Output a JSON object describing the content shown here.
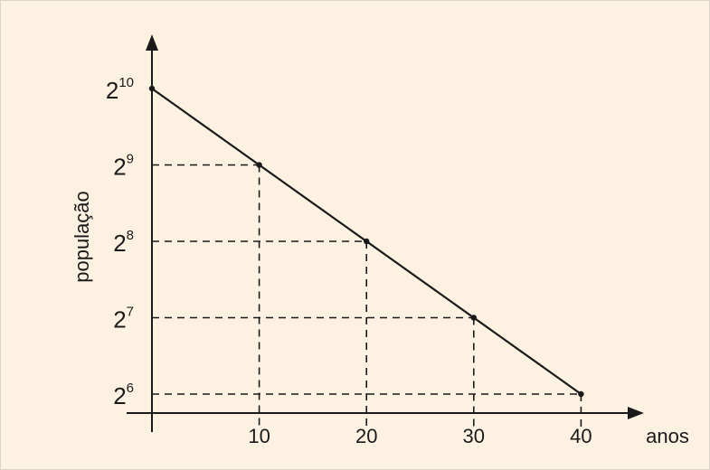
{
  "colors": {
    "background": "#fdf2e2",
    "border": "#d9d4cc",
    "ink": "#1a1a1a"
  },
  "chart_data": {
    "type": "line",
    "xlabel": "anos",
    "ylabel": "população",
    "xlim": [
      0,
      42
    ],
    "ylim": [
      52,
      1100
    ],
    "x_ticks": [
      {
        "value": 10,
        "label": "10"
      },
      {
        "value": 20,
        "label": "20"
      },
      {
        "value": 30,
        "label": "30"
      },
      {
        "value": 40,
        "label": "40"
      }
    ],
    "y_ticks": [
      {
        "value": 64,
        "base": "2",
        "exp": "6"
      },
      {
        "value": 128,
        "base": "2",
        "exp": "7"
      },
      {
        "value": 256,
        "base": "2",
        "exp": "8"
      },
      {
        "value": 512,
        "base": "2",
        "exp": "9"
      },
      {
        "value": 1024,
        "base": "2",
        "exp": "10"
      }
    ],
    "series": [
      {
        "points": [
          {
            "x": 0,
            "y": 1024
          },
          {
            "x": 10,
            "y": 512
          },
          {
            "x": 20,
            "y": 256
          },
          {
            "x": 30,
            "y": 128
          },
          {
            "x": 40,
            "y": 64
          }
        ]
      }
    ],
    "guides": "dashed"
  }
}
